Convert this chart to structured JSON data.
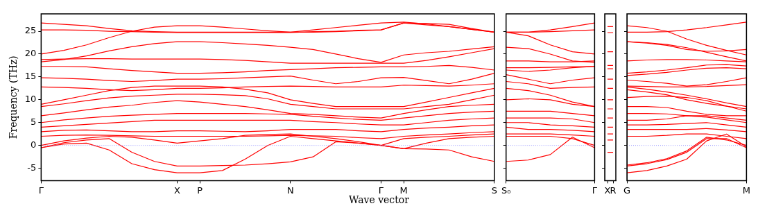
{
  "chart_data": [
    {
      "type": "line",
      "ylabel": "Frequency (THz)",
      "xlabel": "Wave vector",
      "color": "#ff0000",
      "marker": "none",
      "line_style": "solid",
      "grid": false,
      "legend": false,
      "categories": [
        "Γ",
        null,
        null,
        null,
        null,
        null,
        "X",
        "P",
        null,
        null,
        null,
        "N",
        null,
        null,
        null,
        "Γ",
        "M",
        null,
        null,
        null,
        "S"
      ],
      "ylim": [
        -7.7,
        28.8
      ],
      "yticks": [
        -5,
        0,
        5,
        10,
        15,
        20,
        25
      ],
      "ref_lines": [
        {
          "axis": "y",
          "value": 0,
          "color": "#8080ff",
          "line_style": "dotted"
        }
      ],
      "series": [
        {
          "values": [
            26.8,
            26.5,
            26.2,
            25.6,
            25.1,
            24.9,
            24.8,
            24.8,
            24.8,
            24.8,
            24.8,
            24.8,
            25.3,
            25.8,
            26.3,
            26.8,
            27.0,
            26.6,
            26.0,
            25.4,
            24.8
          ]
        },
        {
          "values": [
            25.3,
            25.3,
            25.2,
            25.0,
            24.9,
            24.8,
            24.7,
            24.7,
            24.7,
            24.7,
            24.7,
            24.7,
            24.9,
            25.0,
            25.2,
            25.3,
            26.8,
            26.7,
            26.5,
            25.6,
            24.8
          ]
        },
        {
          "values": [
            20.0,
            20.8,
            22.0,
            23.6,
            25.0,
            25.9,
            26.2,
            26.2,
            25.9,
            25.5,
            25.1,
            24.8,
            24.8,
            24.9,
            25.1,
            25.3,
            26.8,
            26.4,
            26.0,
            25.4,
            24.8
          ]
        },
        {
          "values": [
            18.3,
            18.8,
            19.6,
            20.7,
            21.6,
            22.3,
            22.7,
            22.7,
            22.5,
            22.2,
            21.9,
            21.5,
            21.0,
            20.0,
            19.0,
            18.2,
            19.8,
            20.3,
            20.6,
            21.1,
            21.6
          ]
        },
        {
          "values": [
            18.8,
            18.9,
            19.0,
            19.0,
            18.9,
            18.9,
            18.9,
            18.9,
            18.8,
            18.6,
            18.3,
            18.0,
            18.0,
            18.0,
            18.0,
            18.0,
            18.0,
            18.6,
            19.4,
            20.3,
            21.2
          ]
        },
        {
          "values": [
            17.3,
            17.3,
            17.2,
            16.8,
            16.4,
            16.1,
            15.8,
            15.8,
            15.9,
            16.1,
            16.4,
            16.6,
            16.8,
            17.0,
            17.1,
            17.2,
            17.2,
            17.3,
            17.5,
            17.1,
            16.5
          ]
        },
        {
          "values": [
            14.8,
            14.7,
            14.5,
            14.2,
            14.0,
            14.2,
            14.5,
            14.5,
            14.6,
            14.8,
            15.0,
            15.2,
            14.3,
            13.5,
            14.0,
            14.8,
            14.9,
            14.2,
            13.5,
            14.5,
            15.8
          ]
        },
        {
          "values": [
            12.8,
            12.7,
            12.5,
            12.2,
            12.0,
            12.2,
            12.5,
            12.5,
            12.6,
            12.8,
            12.9,
            13.0,
            12.9,
            12.8,
            12.8,
            12.8,
            13.2,
            13.1,
            13.0,
            13.2,
            13.5
          ]
        },
        {
          "values": [
            9.0,
            10.0,
            11.0,
            12.0,
            12.7,
            13.0,
            13.0,
            13.0,
            12.8,
            12.3,
            11.5,
            10.0,
            9.2,
            8.5,
            8.5,
            8.5,
            8.5,
            9.5,
            10.5,
            11.5,
            12.5
          ]
        },
        {
          "values": [
            8.5,
            9.1,
            9.8,
            10.4,
            10.8,
            11.0,
            11.2,
            11.2,
            11.1,
            10.9,
            10.2,
            9.0,
            8.5,
            8.0,
            8.0,
            8.0,
            8.0,
            8.5,
            9.0,
            10.0,
            11.0
          ]
        },
        {
          "values": [
            6.5,
            7.1,
            7.8,
            8.4,
            8.8,
            9.4,
            9.8,
            9.5,
            9.0,
            8.5,
            7.8,
            7.0,
            6.8,
            6.5,
            6.2,
            6.0,
            7.0,
            7.8,
            8.5,
            8.8,
            9.0
          ]
        },
        {
          "values": [
            5.0,
            5.6,
            6.0,
            6.4,
            6.6,
            6.8,
            7.0,
            7.0,
            7.0,
            7.0,
            6.9,
            6.8,
            6.4,
            6.0,
            5.7,
            5.5,
            6.0,
            6.5,
            7.0,
            7.3,
            7.5
          ]
        },
        {
          "values": [
            4.0,
            4.3,
            4.6,
            4.9,
            5.2,
            5.5,
            5.5,
            5.5,
            5.5,
            5.5,
            5.5,
            5.5,
            5.2,
            5.0,
            4.7,
            4.5,
            4.5,
            5.0,
            5.5,
            5.8,
            6.0
          ]
        },
        {
          "values": [
            3.0,
            3.3,
            3.4,
            3.2,
            3.0,
            3.0,
            3.2,
            3.2,
            3.1,
            3.0,
            3.2,
            3.5,
            3.5,
            3.5,
            3.2,
            3.0,
            3.5,
            3.8,
            4.0,
            4.3,
            4.5
          ]
        },
        {
          "values": [
            2.0,
            2.2,
            2.3,
            2.2,
            2.1,
            2.0,
            2.0,
            2.0,
            2.0,
            2.0,
            2.1,
            2.2,
            2.1,
            2.0,
            1.7,
            1.5,
            2.0,
            2.3,
            2.5,
            2.8,
            3.0
          ]
        },
        {
          "values": [
            0,
            1.0,
            1.6,
            2.0,
            1.8,
            1.2,
            0.5,
            1.0,
            1.5,
            2.2,
            2.4,
            2.5,
            2.0,
            1.5,
            0.8,
            0,
            1.5,
            1.8,
            2.0,
            2.3,
            2.5
          ]
        },
        {
          "values": [
            -0.5,
            0.6,
            1.2,
            1.5,
            -1.5,
            -3.5,
            -4.5,
            -4.5,
            -4.4,
            -4.3,
            -4.0,
            -3.6,
            -2.5,
            0.8,
            0.5,
            0,
            -0.7,
            -0.8,
            -1.0,
            -2.5,
            -3.5
          ]
        },
        {
          "values": [
            -0.5,
            0.3,
            0.5,
            -1.0,
            -4.0,
            -5.3,
            -6.0,
            -6.0,
            -5.5,
            -3.0,
            0.0,
            2.0,
            1.5,
            1.0,
            0.5,
            0,
            -0.7,
            0.5,
            1.5,
            1.8,
            2.0
          ]
        }
      ]
    },
    {
      "type": "line",
      "color": "#ff0000",
      "marker": "none",
      "line_style": "solid",
      "grid": false,
      "legend": false,
      "tick_labels": "x",
      "categories": [
        "S₀",
        null,
        null,
        null,
        "Γ"
      ],
      "ylim": [
        -7.7,
        28.8
      ],
      "yticks": [
        -5,
        0,
        5,
        10,
        15,
        20,
        25
      ],
      "ref_lines": [
        {
          "axis": "y",
          "value": 0,
          "color": "#8080ff",
          "line_style": "dotted"
        }
      ],
      "series": [
        {
          "values": [
            24.8,
            24.8,
            25.3,
            26.0,
            26.8
          ]
        },
        {
          "values": [
            24.8,
            24.8,
            24.9,
            25.1,
            25.3
          ]
        },
        {
          "values": [
            24.8,
            24.0,
            22.0,
            20.5,
            20.0
          ]
        },
        {
          "values": [
            21.5,
            21.2,
            20.0,
            18.5,
            18.2
          ]
        },
        {
          "values": [
            18.5,
            18.5,
            18.3,
            18.3,
            18.5
          ]
        },
        {
          "values": [
            17.0,
            17.0,
            17.1,
            17.2,
            17.3
          ]
        },
        {
          "values": [
            16.5,
            16.2,
            16.5,
            17.0,
            17.3
          ]
        },
        {
          "values": [
            15.5,
            14.5,
            13.5,
            14.3,
            14.8
          ]
        },
        {
          "values": [
            14.0,
            13.5,
            12.5,
            12.7,
            12.8
          ]
        },
        {
          "values": [
            12.5,
            12.0,
            11.0,
            9.5,
            8.5
          ]
        },
        {
          "values": [
            10.0,
            10.2,
            10.0,
            9.0,
            8.5
          ]
        },
        {
          "values": [
            7.5,
            7.5,
            7.5,
            7.0,
            6.5
          ]
        },
        {
          "values": [
            6.0,
            6.0,
            6.0,
            5.8,
            5.0
          ]
        },
        {
          "values": [
            5.0,
            5.0,
            4.5,
            4.3,
            4.0
          ]
        },
        {
          "values": [
            4.0,
            3.5,
            3.5,
            3.3,
            3.0
          ]
        },
        {
          "values": [
            2.5,
            2.5,
            2.5,
            2.3,
            2.0
          ]
        },
        {
          "values": [
            2.0,
            2.0,
            2.0,
            1.5,
            0
          ]
        },
        {
          "values": [
            -3.5,
            -3.2,
            -2.0,
            1.8,
            -0.5
          ]
        }
      ]
    },
    {
      "type": "line",
      "color": "#ff0000",
      "marker": "none",
      "line_style": "solid",
      "grid": false,
      "legend": false,
      "tick_labels": "x",
      "categories": [
        "X",
        "R"
      ],
      "ylim": [
        -7.7,
        28.8
      ],
      "yticks": [
        -5,
        0,
        5,
        10,
        15,
        20,
        25
      ],
      "series": [
        {
          "values": [
            26.0,
            26.0
          ]
        },
        {
          "values": [
            24.7,
            24.7
          ]
        },
        {
          "values": [
            20.5,
            20.5
          ]
        },
        {
          "values": [
            17.5,
            17.5
          ]
        },
        {
          "values": [
            16.8,
            16.8
          ]
        },
        {
          "values": [
            14.5,
            14.5
          ]
        },
        {
          "values": [
            12.5,
            12.5
          ]
        },
        {
          "values": [
            10.0,
            10.0
          ]
        },
        {
          "values": [
            8.0,
            8.0
          ]
        },
        {
          "values": [
            6.0,
            6.0
          ]
        },
        {
          "values": [
            4.0,
            4.0
          ]
        },
        {
          "values": [
            2.5,
            2.5
          ]
        },
        {
          "values": [
            1.2,
            1.2
          ]
        },
        {
          "values": [
            -1.5,
            -1.5
          ]
        }
      ]
    },
    {
      "type": "line",
      "color": "#ff0000",
      "marker": "none",
      "line_style": "solid",
      "grid": false,
      "legend": false,
      "tick_labels": "x",
      "categories": [
        "G",
        null,
        null,
        null,
        null,
        null,
        "M"
      ],
      "ylim": [
        -7.7,
        28.8
      ],
      "yticks": [
        -5,
        0,
        5,
        10,
        15,
        20,
        25
      ],
      "ref_lines": [
        {
          "axis": "y",
          "value": 0,
          "color": "#8080ff",
          "line_style": "dotted"
        }
      ],
      "series": [
        {
          "values": [
            24.8,
            24.8,
            24.9,
            25.3,
            25.8,
            26.4,
            27.0
          ]
        },
        {
          "values": [
            26.2,
            25.8,
            25.0,
            23.3,
            21.9,
            20.8,
            19.8
          ]
        },
        {
          "values": [
            22.7,
            22.5,
            22.1,
            21.4,
            20.4,
            19.4,
            18.5
          ]
        },
        {
          "values": [
            22.7,
            22.4,
            21.9,
            21.0,
            20.6,
            20.7,
            21.0
          ]
        },
        {
          "values": [
            18.5,
            18.7,
            18.8,
            18.8,
            18.7,
            18.5,
            18.3
          ]
        },
        {
          "values": [
            15.8,
            16.1,
            16.5,
            17.0,
            17.6,
            17.7,
            17.4
          ]
        },
        {
          "values": [
            15.3,
            15.6,
            16.0,
            16.5,
            16.9,
            17.0,
            16.8
          ]
        },
        {
          "values": [
            14.3,
            14.0,
            13.6,
            13.0,
            13.3,
            14.0,
            14.8
          ]
        },
        {
          "values": [
            13.0,
            12.9,
            12.8,
            12.8,
            12.9,
            13.1,
            13.3
          ]
        },
        {
          "values": [
            12.8,
            12.3,
            11.7,
            11.0,
            10.2,
            9.3,
            8.5
          ]
        },
        {
          "values": [
            12.2,
            11.7,
            11.1,
            10.0,
            9.2,
            8.6,
            8.0
          ]
        },
        {
          "values": [
            10.5,
            10.7,
            10.8,
            10.5,
            9.8,
            8.6,
            7.5
          ]
        },
        {
          "values": [
            8.5,
            8.5,
            8.3,
            7.5,
            6.8,
            6.5,
            6.5
          ]
        },
        {
          "values": [
            7.0,
            7.0,
            6.9,
            6.5,
            6.5,
            6.0,
            5.5
          ]
        },
        {
          "values": [
            5.5,
            5.5,
            5.8,
            6.5,
            6.2,
            5.6,
            5.0
          ]
        },
        {
          "values": [
            4.5,
            4.5,
            4.6,
            4.8,
            5.0,
            4.5,
            4.0
          ]
        },
        {
          "values": [
            3.5,
            3.5,
            3.5,
            3.5,
            3.7,
            3.4,
            3.0
          ]
        },
        {
          "values": [
            2.0,
            2.0,
            2.2,
            2.5,
            2.5,
            2.0,
            1.5
          ]
        },
        {
          "values": [
            -4.5,
            -4.0,
            -3.1,
            -1.5,
            1.5,
            1.5,
            -0.5
          ]
        },
        {
          "values": [
            -6.0,
            -5.5,
            -4.5,
            -3.0,
            1.0,
            2.5,
            -0.3
          ]
        },
        {
          "values": [
            -4.3,
            -3.8,
            -2.9,
            -1.2,
            1.8,
            1.2,
            0
          ]
        }
      ]
    }
  ]
}
